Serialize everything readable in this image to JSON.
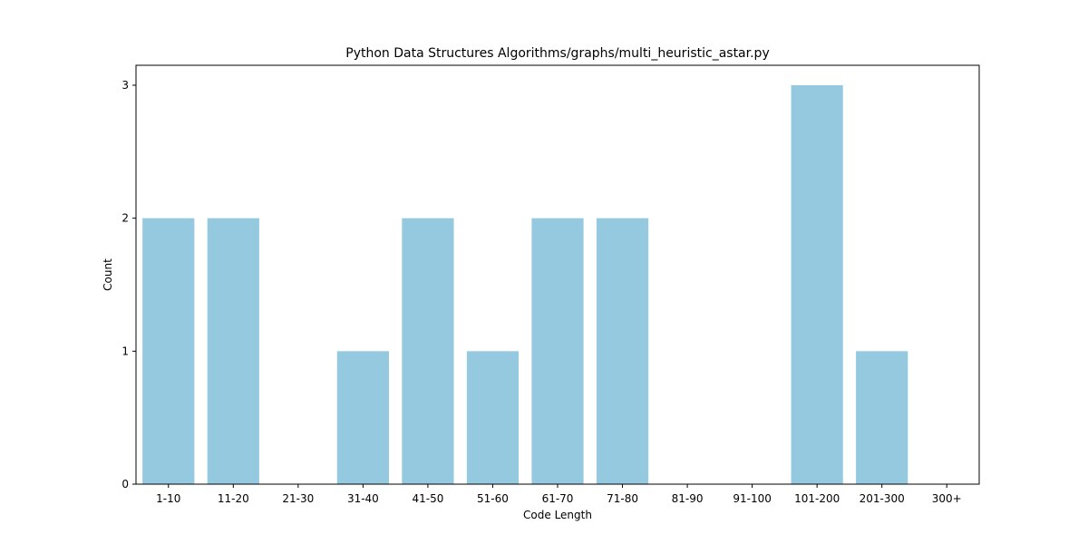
{
  "chart_data": {
    "type": "bar",
    "title": "Python Data Structures Algorithms/graphs/multi_heuristic_astar.py",
    "xlabel": "Code Length",
    "ylabel": "Count",
    "categories": [
      "1-10",
      "11-20",
      "21-30",
      "31-40",
      "41-50",
      "51-60",
      "61-70",
      "71-80",
      "81-90",
      "91-100",
      "101-200",
      "201-300",
      "300+"
    ],
    "values": [
      2,
      2,
      0,
      1,
      2,
      1,
      2,
      2,
      0,
      0,
      3,
      1,
      0
    ],
    "ylim": [
      0,
      3.15
    ],
    "yticks": [
      0,
      1,
      2,
      3
    ],
    "grid": false,
    "bar_color": "#95c9df"
  }
}
